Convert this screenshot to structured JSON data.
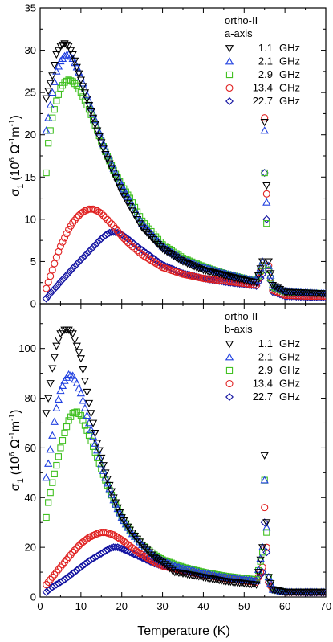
{
  "figure": {
    "xlabel": "Temperature (K)"
  },
  "chart_data": [
    {
      "type": "scatter",
      "panel": "top",
      "annotation_title": "ortho-II",
      "annotation_subtitle": "a-axis",
      "ylabel_main": "σ",
      "ylabel_sub": "1",
      "ylabel_unit_parts": [
        "(10",
        "6",
        " Ω",
        "-1",
        "m",
        "-1",
        ")"
      ],
      "xlim": [
        0,
        70
      ],
      "ylim": [
        0,
        35
      ],
      "x_ticks": [
        0,
        10,
        20,
        30,
        40,
        50,
        60,
        70
      ],
      "y_ticks": [
        0,
        5,
        10,
        15,
        20,
        25,
        30,
        35
      ],
      "x_tick_labels_shown": false,
      "legend_position": "top-right",
      "series": [
        {
          "name": "1.1",
          "unit": "GHz",
          "marker": "triangle-down",
          "color": "#000000",
          "x": [
            1.5,
            3,
            4,
            5,
            6,
            7,
            8,
            9,
            10,
            12,
            14,
            16,
            18,
            20,
            22,
            25,
            30,
            35,
            40,
            45,
            50,
            53,
            54.5,
            55,
            55.5,
            56,
            57,
            60,
            65,
            70
          ],
          "y": [
            24.3,
            27,
            29.5,
            30.5,
            30.8,
            30.5,
            29.5,
            28,
            26.5,
            23.5,
            20.5,
            17.7,
            15.5,
            13.2,
            11.5,
            9,
            6.5,
            5,
            4,
            3.4,
            2.8,
            2.5,
            5,
            21.5,
            14,
            5,
            2.2,
            1.4,
            1.3,
            1.2
          ]
        },
        {
          "name": "2.1",
          "unit": "GHz",
          "marker": "triangle-up",
          "color": "#2040e0",
          "x": [
            1.5,
            3,
            4,
            5,
            6,
            7,
            8,
            9,
            10,
            12,
            14,
            16,
            18,
            20,
            22,
            25,
            30,
            35,
            40,
            45,
            50,
            53,
            54.5,
            55,
            55.5,
            56,
            57,
            60,
            65,
            70
          ],
          "y": [
            20.5,
            25,
            27.5,
            28.7,
            29.3,
            29.5,
            29,
            28,
            26.8,
            24,
            21,
            18.2,
            16,
            14,
            12.2,
            9.5,
            6.8,
            5.2,
            4.3,
            3.6,
            3,
            2.7,
            5,
            20.5,
            12,
            4.5,
            2.2,
            1.5,
            1.3,
            1.2
          ]
        },
        {
          "name": "2.9",
          "unit": "GHz",
          "marker": "square",
          "color": "#40c020",
          "x": [
            1.5,
            2,
            3,
            4,
            5,
            6,
            7,
            8,
            9,
            10,
            12,
            14,
            16,
            18,
            20,
            22,
            25,
            30,
            35,
            40,
            45,
            50,
            53,
            54.5,
            55,
            55.5,
            56,
            57,
            60,
            65,
            70
          ],
          "y": [
            15.5,
            19,
            22,
            24,
            25.5,
            26.2,
            26.5,
            26.3,
            25.8,
            25,
            23,
            20.5,
            18,
            15.8,
            14,
            12.5,
            9.8,
            7,
            5.4,
            4.4,
            3.6,
            3,
            2.7,
            4.5,
            15.5,
            9.5,
            4,
            2,
            1.4,
            1.3,
            1.2
          ]
        },
        {
          "name": "13.4",
          "unit": "GHz",
          "marker": "circle",
          "color": "#e02020",
          "x": [
            1.5,
            3,
            4,
            5,
            6,
            7,
            8,
            9,
            10,
            11,
            12,
            13,
            14,
            15,
            16,
            18,
            20,
            22,
            25,
            30,
            35,
            40,
            45,
            50,
            53,
            54.5,
            55,
            55.5,
            56,
            57,
            60,
            65,
            70
          ],
          "y": [
            1.8,
            4,
            5.5,
            6.8,
            7.8,
            8.8,
            9.6,
            10.2,
            10.7,
            11,
            11.2,
            11.2,
            11,
            10.7,
            10.2,
            9.2,
            8,
            7,
            5.8,
            4.3,
            3.5,
            3,
            2.7,
            2.4,
            2.2,
            4.5,
            22,
            13,
            4.5,
            1.6,
            1,
            0.9,
            0.9
          ]
        },
        {
          "name": "22.7",
          "unit": "GHz",
          "marker": "diamond",
          "color": "#1010a0",
          "x": [
            1.5,
            3,
            4,
            5,
            6,
            8,
            10,
            12,
            14,
            15,
            16,
            17,
            18,
            19,
            20,
            22,
            24,
            26,
            28,
            30,
            35,
            40,
            45,
            50,
            53,
            54.5,
            55,
            55.5,
            56,
            57,
            60,
            65,
            70
          ],
          "y": [
            0.6,
            1.5,
            2,
            2.6,
            3.1,
            4.2,
            5.2,
            6.2,
            7.2,
            7.7,
            8.1,
            8.4,
            8.5,
            8.4,
            8.2,
            7.5,
            6.7,
            6,
            5.3,
            4.6,
            3.6,
            3,
            2.6,
            2.3,
            2.1,
            3.5,
            15.5,
            10,
            4,
            1.4,
            0.9,
            0.8,
            0.8
          ]
        }
      ]
    },
    {
      "type": "scatter",
      "panel": "bottom",
      "annotation_title": "ortho-II",
      "annotation_subtitle": "b-axis",
      "ylabel_main": "σ",
      "ylabel_sub": "1",
      "ylabel_unit_parts": [
        "(10",
        "6",
        " Ω",
        "-1",
        "m",
        "-1",
        ")"
      ],
      "xlim": [
        0,
        70
      ],
      "ylim": [
        0,
        118
      ],
      "x_ticks": [
        0,
        10,
        20,
        30,
        40,
        50,
        60,
        70
      ],
      "y_ticks": [
        0,
        20,
        40,
        60,
        80,
        100
      ],
      "x_tick_labels_shown": true,
      "legend_position": "top-right",
      "series": [
        {
          "name": "1.1",
          "unit": "GHz",
          "marker": "triangle-down",
          "color": "#000000",
          "x": [
            1.5,
            3,
            4,
            5,
            6,
            7,
            8,
            9,
            10,
            12,
            14,
            16,
            18,
            20,
            22,
            25,
            28,
            30,
            33,
            35,
            40,
            45,
            50,
            53,
            54.5,
            55,
            55.5,
            56,
            57,
            60,
            65,
            70
          ],
          "y": [
            74,
            92,
            101,
            106,
            107.5,
            107.5,
            106,
            101,
            96,
            78,
            62,
            50,
            40,
            32,
            27,
            21,
            16,
            14,
            10,
            9.5,
            8,
            6.5,
            5.5,
            5,
            20,
            57,
            30,
            8,
            3,
            2,
            2,
            2
          ]
        },
        {
          "name": "2.1",
          "unit": "GHz",
          "marker": "triangle-up",
          "color": "#2040e0",
          "x": [
            1.5,
            3,
            4,
            5,
            6,
            7,
            8,
            9,
            10,
            12,
            14,
            16,
            18,
            20,
            22,
            25,
            28,
            30,
            33,
            35,
            40,
            45,
            50,
            53,
            54.5,
            55,
            55.5,
            56,
            57,
            60,
            65,
            70
          ],
          "y": [
            48,
            65,
            76,
            83,
            87,
            89.5,
            89,
            86,
            82,
            70,
            59,
            48,
            39,
            32,
            26.5,
            21,
            16.5,
            14.5,
            12.5,
            11.5,
            9.5,
            8,
            7,
            6.5,
            20,
            47,
            28,
            8,
            3,
            2,
            2,
            2
          ]
        },
        {
          "name": "2.9",
          "unit": "GHz",
          "marker": "square",
          "color": "#40c020",
          "x": [
            1.5,
            2,
            3,
            4,
            5,
            6,
            7,
            8,
            9,
            10,
            11,
            12,
            14,
            16,
            18,
            20,
            22,
            25,
            28,
            30,
            35,
            40,
            45,
            50,
            53,
            54.5,
            55,
            55.5,
            56,
            57,
            60,
            65,
            70
          ],
          "y": [
            32,
            38,
            46,
            53,
            60,
            66,
            71,
            74,
            74.5,
            73,
            69,
            65,
            56,
            47,
            39,
            32,
            27,
            21,
            17,
            15,
            12,
            10,
            8.5,
            7.5,
            7,
            18,
            47,
            26,
            8,
            3,
            2,
            2,
            2
          ]
        },
        {
          "name": "13.4",
          "unit": "GHz",
          "marker": "circle",
          "color": "#e02020",
          "x": [
            1.5,
            3,
            4,
            5,
            6,
            8,
            10,
            12,
            14,
            15,
            16,
            17,
            18,
            20,
            22,
            24,
            26,
            28,
            30,
            35,
            40,
            45,
            50,
            53,
            54.5,
            55,
            55.5,
            56,
            57,
            60,
            65,
            70
          ],
          "y": [
            5,
            8,
            10,
            12,
            14,
            18,
            21.5,
            24,
            25.5,
            26,
            26,
            25.5,
            25,
            23,
            20.5,
            18,
            16,
            14,
            12.5,
            10.5,
            9,
            7.5,
            6.5,
            6,
            12,
            36,
            20,
            6,
            3,
            2,
            2,
            2
          ]
        },
        {
          "name": "22.7",
          "unit": "GHz",
          "marker": "diamond",
          "color": "#1010a0",
          "x": [
            1.5,
            3,
            4,
            5,
            6,
            8,
            10,
            12,
            14,
            16,
            17,
            18,
            19,
            20,
            22,
            24,
            26,
            28,
            30,
            35,
            40,
            45,
            50,
            53,
            54.5,
            55,
            55.5,
            56,
            57,
            60,
            65,
            70
          ],
          "y": [
            2,
            4,
            5,
            6,
            7,
            9.5,
            12,
            14.5,
            16.5,
            18.5,
            19.5,
            20,
            20,
            19.5,
            18,
            16.5,
            15,
            13.5,
            12.5,
            10.5,
            9,
            8,
            7,
            6.5,
            10,
            30,
            18,
            6,
            3,
            2,
            1.8,
            1.8
          ]
        }
      ]
    }
  ]
}
